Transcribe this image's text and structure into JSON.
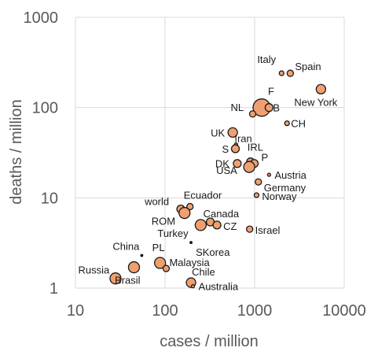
{
  "chart_data": {
    "type": "scatter",
    "title": "",
    "xlabel": "cases / million",
    "ylabel": "deaths / million",
    "xscale": "log",
    "yscale": "log",
    "xlim": [
      10,
      10000
    ],
    "ylim": [
      1,
      1000
    ],
    "xticks": [
      "10",
      "100",
      "1000",
      "10000"
    ],
    "yticks": [
      "1",
      "10",
      "100",
      "1000"
    ],
    "grid": true,
    "legend": "none",
    "marker_color": "#f0a070",
    "marker_edge_color": "#1a1a1a",
    "points": [
      {
        "label": "Italy",
        "x": 2000,
        "y": 240,
        "size": 3
      },
      {
        "label": "Spain",
        "x": 2500,
        "y": 240,
        "size": 4
      },
      {
        "label": "New York",
        "x": 5500,
        "y": 160,
        "size": 6
      },
      {
        "label": "F",
        "x": 1200,
        "y": 100,
        "size": 11
      },
      {
        "label": "B",
        "x": 1450,
        "y": 100,
        "size": 5
      },
      {
        "label": "NL",
        "x": 950,
        "y": 85,
        "size": 4
      },
      {
        "label": "CH",
        "x": 2300,
        "y": 67,
        "size": 3
      },
      {
        "label": "UK",
        "x": 570,
        "y": 53,
        "size": 6
      },
      {
        "label": "Iran",
        "x": 620,
        "y": 39,
        "size": 2
      },
      {
        "label": "S",
        "x": 610,
        "y": 35,
        "size": 5
      },
      {
        "label": "IRL",
        "x": 900,
        "y": 25,
        "size": 5
      },
      {
        "label": "DK",
        "x": 640,
        "y": 24,
        "size": 5
      },
      {
        "label": "P",
        "x": 990,
        "y": 24,
        "size": 5
      },
      {
        "label": "USA",
        "x": 870,
        "y": 22,
        "size": 7
      },
      {
        "label": "Austria",
        "x": 1450,
        "y": 18,
        "size": 2
      },
      {
        "label": "Germany",
        "x": 1100,
        "y": 15,
        "size": 4
      },
      {
        "label": "Norway",
        "x": 1050,
        "y": 10.7,
        "size": 3
      },
      {
        "label": "Ecuador",
        "x": 190,
        "y": 8,
        "size": 4
      },
      {
        "label": "world",
        "x": 150,
        "y": 7.5,
        "size": 5
      },
      {
        "label": "ROM",
        "x": 165,
        "y": 6.8,
        "size": 7
      },
      {
        "label": "Canada",
        "x": 320,
        "y": 5.4,
        "size": 5
      },
      {
        "label": "Turkey",
        "x": 250,
        "y": 5.0,
        "size": 7
      },
      {
        "label": "CZ",
        "x": 380,
        "y": 5.0,
        "size": 5
      },
      {
        "label": "Israel",
        "x": 880,
        "y": 4.5,
        "size": 4
      },
      {
        "label": "SKorea",
        "x": 195,
        "y": 3.2,
        "size": 1
      },
      {
        "label": "China",
        "x": 55,
        "y": 2.3,
        "size": 1
      },
      {
        "label": "PL",
        "x": 88,
        "y": 1.9,
        "size": 7
      },
      {
        "label": "Malaysia",
        "x": 103,
        "y": 1.65,
        "size": 4
      },
      {
        "label": "Russia",
        "x": 45,
        "y": 1.7,
        "size": 7
      },
      {
        "label": "Brasil",
        "x": 28,
        "y": 1.28,
        "size": 7
      },
      {
        "label": "Chile",
        "x": 195,
        "y": 1.15,
        "size": 6
      },
      {
        "label": "Australia",
        "x": 205,
        "y": 1.05,
        "size": 2
      }
    ]
  }
}
